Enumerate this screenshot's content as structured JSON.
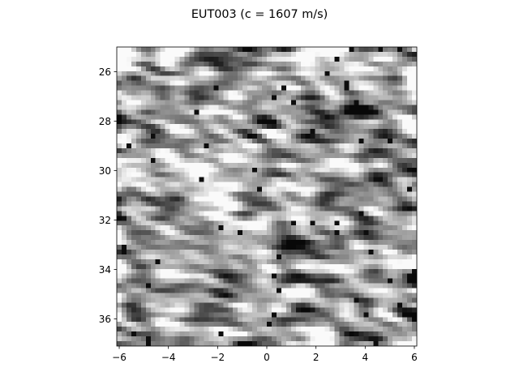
{
  "chart_data": {
    "type": "heatmap",
    "title": "EUT003 (c = 1607 m/s)",
    "colormap": "grayscale",
    "xlim": [
      -6.1,
      6.1
    ],
    "ylim": [
      37.1,
      25.0
    ],
    "y_inverted": true,
    "x_ticks": [
      -6,
      -4,
      -2,
      0,
      2,
      4,
      6
    ],
    "x_tick_labels": [
      "−6",
      "−4",
      "−2",
      "0",
      "2",
      "4",
      "6"
    ],
    "y_ticks": [
      26,
      28,
      30,
      32,
      34,
      36
    ],
    "y_tick_labels": [
      "26",
      "28",
      "30",
      "32",
      "34",
      "36"
    ],
    "xlabel": "",
    "ylabel": "",
    "grid": false,
    "legend": "none",
    "grid_resolution": [
      62,
      62
    ],
    "texture": "speckle pattern of bright and dark mottled streaks (ultrasound B-mode image)"
  }
}
